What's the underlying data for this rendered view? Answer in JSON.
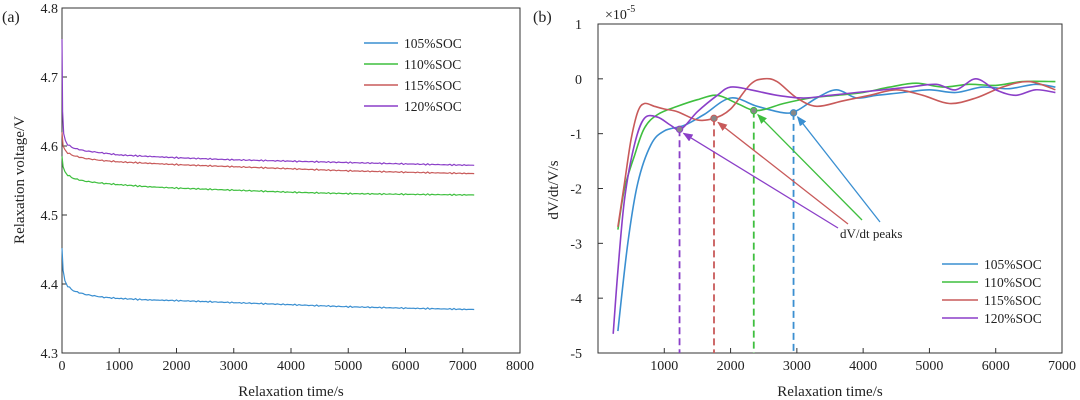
{
  "chart_data": [
    {
      "panel": "(a)",
      "type": "line",
      "xlabel": "Relaxation time/s",
      "ylabel": "Relaxation voltage/V",
      "xlim": [
        0,
        8000
      ],
      "ylim": [
        4.3,
        4.8
      ],
      "xticks": [
        "0",
        "1000",
        "2000",
        "3000",
        "4000",
        "5000",
        "6000",
        "7000",
        "8000"
      ],
      "yticks": [
        "4.3",
        "4.4",
        "4.5",
        "4.6",
        "4.7",
        "4.8"
      ],
      "grid": false,
      "legend_position": "top-right",
      "series": [
        {
          "name": "105%SOC",
          "color": "#3a8fd1",
          "x": [
            0,
            20,
            50,
            100,
            200,
            400,
            700,
            1000,
            1500,
            2000,
            3000,
            4000,
            5000,
            6000,
            7200
          ],
          "y": [
            4.452,
            4.42,
            4.405,
            4.397,
            4.39,
            4.385,
            4.381,
            4.379,
            4.377,
            4.376,
            4.373,
            4.37,
            4.367,
            4.365,
            4.363
          ]
        },
        {
          "name": "110%SOC",
          "color": "#3fbf3f",
          "x": [
            0,
            20,
            50,
            100,
            200,
            400,
            700,
            1000,
            1500,
            2000,
            3000,
            4000,
            5000,
            6000,
            7200
          ],
          "y": [
            4.585,
            4.57,
            4.563,
            4.558,
            4.553,
            4.549,
            4.546,
            4.544,
            4.541,
            4.539,
            4.536,
            4.533,
            4.531,
            4.53,
            4.529
          ]
        },
        {
          "name": "115%SOC",
          "color": "#c85a5a",
          "x": [
            0,
            20,
            50,
            100,
            200,
            400,
            700,
            1000,
            1500,
            2000,
            3000,
            4000,
            5000,
            6000,
            7200
          ],
          "y": [
            4.62,
            4.6,
            4.595,
            4.59,
            4.586,
            4.582,
            4.579,
            4.577,
            4.575,
            4.573,
            4.57,
            4.567,
            4.564,
            4.562,
            4.56
          ]
        },
        {
          "name": "120%SOC",
          "color": "#8b3fc8",
          "x": [
            0,
            10,
            30,
            60,
            100,
            200,
            400,
            700,
            1000,
            1500,
            2000,
            3000,
            4000,
            5000,
            6000,
            7200
          ],
          "y": [
            4.755,
            4.65,
            4.618,
            4.607,
            4.602,
            4.597,
            4.593,
            4.59,
            4.587,
            4.585,
            4.583,
            4.58,
            4.578,
            4.576,
            4.574,
            4.572
          ]
        }
      ]
    },
    {
      "panel": "(b)",
      "type": "line",
      "xlabel": "Relaxation time/s",
      "ylabel": "dV/dt/V/s",
      "scale_label": "×10",
      "scale_exponent": "-5",
      "xlim": [
        0,
        7000
      ],
      "ylim": [
        -5,
        1
      ],
      "xticks": [
        "1000",
        "2000",
        "3000",
        "4000",
        "5000",
        "6000",
        "7000"
      ],
      "yticks": [
        "-5",
        "-4",
        "-3",
        "-2",
        "-1",
        "0",
        "1"
      ],
      "grid": false,
      "legend_position": "bottom-right",
      "annotation": "dV/dt peaks",
      "series": [
        {
          "name": "105%SOC",
          "color": "#3a8fd1",
          "x": [
            300,
            450,
            600,
            800,
            1000,
            1300,
            1600,
            2000,
            2400,
            2800,
            3000,
            3300,
            3600,
            3900,
            4200,
            4600,
            5000,
            5400,
            5800,
            6200,
            6600,
            6900
          ],
          "y": [
            -4.6,
            -3.0,
            -1.9,
            -1.2,
            -0.95,
            -0.85,
            -0.65,
            -0.35,
            -0.5,
            -0.62,
            -0.58,
            -0.35,
            -0.2,
            -0.35,
            -0.3,
            -0.25,
            -0.2,
            -0.25,
            -0.15,
            -0.18,
            -0.1,
            -0.15
          ],
          "peak": {
            "x": 2950,
            "y": -0.62
          }
        },
        {
          "name": "110%SOC",
          "color": "#3fbf3f",
          "x": [
            300,
            400,
            550,
            700,
            900,
            1200,
            1500,
            1800,
            2100,
            2400,
            2800,
            3200,
            3600,
            4000,
            4400,
            4800,
            5200,
            5600,
            6000,
            6400,
            6900
          ],
          "y": [
            -2.75,
            -2.0,
            -1.4,
            -0.9,
            -0.65,
            -0.5,
            -0.38,
            -0.3,
            -0.45,
            -0.58,
            -0.45,
            -0.35,
            -0.3,
            -0.25,
            -0.15,
            -0.08,
            -0.15,
            -0.1,
            -0.12,
            -0.05,
            -0.05
          ],
          "peak": {
            "x": 2350,
            "y": -0.58
          }
        },
        {
          "name": "115%SOC",
          "color": "#c85a5a",
          "x": [
            300,
            400,
            500,
            600,
            700,
            850,
            1000,
            1200,
            1500,
            1750,
            2000,
            2300,
            2500,
            2700,
            3000,
            3300,
            3700,
            4100,
            4500,
            4900,
            5300,
            5700,
            6100,
            6500,
            6900
          ],
          "y": [
            -2.7,
            -1.9,
            -1.1,
            -0.6,
            -0.45,
            -0.5,
            -0.55,
            -0.6,
            -0.75,
            -0.72,
            -0.55,
            -0.1,
            0.0,
            -0.05,
            -0.35,
            -0.5,
            -0.4,
            -0.3,
            -0.2,
            -0.3,
            -0.45,
            -0.35,
            -0.15,
            -0.05,
            -0.2
          ],
          "peak": {
            "x": 1750,
            "y": -0.72
          }
        },
        {
          "name": "120%SOC",
          "color": "#8b3fc8",
          "x": [
            230,
            300,
            400,
            550,
            700,
            900,
            1100,
            1250,
            1500,
            1800,
            2000,
            2300,
            2700,
            3100,
            3500,
            3900,
            4300,
            4700,
            5100,
            5400,
            5700,
            6000,
            6300,
            6600,
            6900
          ],
          "y": [
            -4.65,
            -3.5,
            -2.2,
            -1.2,
            -0.72,
            -0.7,
            -0.85,
            -0.92,
            -0.6,
            -0.3,
            -0.15,
            -0.2,
            -0.3,
            -0.35,
            -0.3,
            -0.25,
            -0.2,
            -0.15,
            -0.1,
            -0.2,
            0.0,
            -0.2,
            -0.3,
            -0.2,
            -0.25
          ],
          "peak": {
            "x": 1230,
            "y": -0.92
          }
        }
      ]
    }
  ]
}
